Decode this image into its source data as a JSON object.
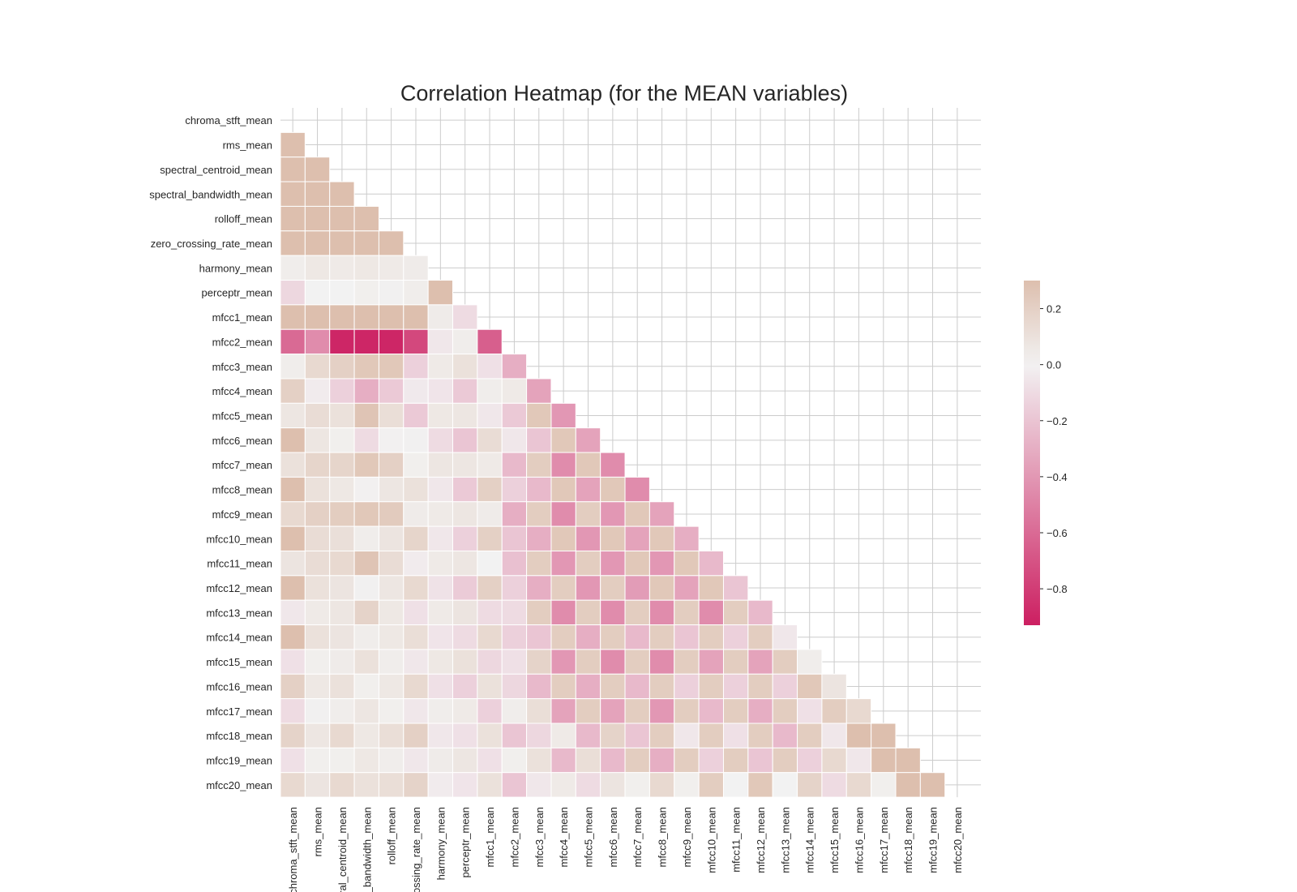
{
  "chart_data": {
    "type": "heatmap",
    "title": "Correlation Heatmap (for the MEAN variables)",
    "xlabel": "",
    "ylabel": "",
    "mask": "upper triangle incl. diagonal",
    "variables": [
      "chroma_stft_mean",
      "rms_mean",
      "spectral_centroid_mean",
      "spectral_bandwidth_mean",
      "rolloff_mean",
      "zero_crossing_rate_mean",
      "harmony_mean",
      "perceptr_mean",
      "mfcc1_mean",
      "mfcc2_mean",
      "mfcc3_mean",
      "mfcc4_mean",
      "mfcc5_mean",
      "mfcc6_mean",
      "mfcc7_mean",
      "mfcc8_mean",
      "mfcc9_mean",
      "mfcc10_mean",
      "mfcc11_mean",
      "mfcc12_mean",
      "mfcc13_mean",
      "mfcc14_mean",
      "mfcc15_mean",
      "mfcc16_mean",
      "mfcc17_mean",
      "mfcc18_mean",
      "mfcc19_mean",
      "mfcc20_mean"
    ],
    "rows": [
      [],
      [
        0.35
      ],
      [
        0.35,
        0.35
      ],
      [
        0.35,
        0.35,
        0.35
      ],
      [
        0.35,
        0.35,
        0.35,
        0.35
      ],
      [
        0.35,
        0.35,
        0.35,
        0.35,
        0.35
      ],
      [
        0.03,
        0.06,
        0.05,
        0.06,
        0.05,
        0.04
      ],
      [
        -0.12,
        0.0,
        0.0,
        0.02,
        0.01,
        0.03,
        0.35
      ],
      [
        0.35,
        0.35,
        0.35,
        0.35,
        0.35,
        0.35,
        0.04,
        -0.1
      ],
      [
        -0.6,
        -0.45,
        -0.9,
        -0.9,
        -0.9,
        -0.75,
        -0.05,
        0.03,
        -0.65
      ],
      [
        0.03,
        0.15,
        0.2,
        0.25,
        0.25,
        -0.15,
        0.05,
        0.1,
        -0.08,
        -0.3
      ],
      [
        0.2,
        -0.03,
        -0.15,
        -0.3,
        -0.18,
        -0.04,
        -0.06,
        -0.18,
        0.03,
        0.05,
        -0.35
      ],
      [
        0.07,
        0.13,
        0.1,
        0.27,
        0.12,
        -0.18,
        0.06,
        0.07,
        -0.05,
        -0.18,
        0.25,
        -0.4
      ],
      [
        0.3,
        0.07,
        0.02,
        -0.1,
        -0.01,
        0.01,
        -0.1,
        -0.2,
        0.13,
        -0.05,
        -0.2,
        0.25,
        -0.35
      ],
      [
        0.1,
        0.17,
        0.17,
        0.25,
        0.2,
        0.02,
        0.07,
        0.07,
        0.05,
        -0.25,
        0.22,
        -0.45,
        0.25,
        -0.45
      ],
      [
        0.3,
        0.1,
        0.06,
        -0.01,
        0.07,
        0.1,
        -0.05,
        -0.18,
        0.2,
        -0.15,
        -0.25,
        0.25,
        -0.35,
        0.25,
        -0.45
      ],
      [
        0.15,
        0.2,
        0.22,
        0.25,
        0.23,
        0.04,
        0.05,
        0.07,
        0.04,
        -0.3,
        0.22,
        -0.45,
        0.22,
        -0.4,
        0.25,
        -0.35
      ],
      [
        0.3,
        0.13,
        0.11,
        0.03,
        0.08,
        0.17,
        -0.05,
        -0.15,
        0.2,
        -0.2,
        -0.3,
        0.25,
        -0.4,
        0.25,
        -0.35,
        0.25,
        -0.3
      ],
      [
        0.08,
        0.13,
        0.15,
        0.27,
        0.13,
        -0.03,
        0.05,
        0.07,
        0.0,
        -0.22,
        0.22,
        -0.4,
        0.22,
        -0.4,
        0.25,
        -0.4,
        0.25,
        -0.25
      ],
      [
        0.3,
        0.1,
        0.08,
        0.01,
        0.07,
        0.15,
        -0.07,
        -0.17,
        0.2,
        -0.15,
        -0.3,
        0.22,
        -0.4,
        0.22,
        -0.38,
        0.25,
        -0.35,
        0.25,
        -0.2
      ],
      [
        -0.05,
        0.05,
        0.07,
        0.18,
        0.06,
        -0.08,
        0.05,
        0.08,
        -0.1,
        -0.1,
        0.22,
        -0.45,
        0.22,
        -0.45,
        0.22,
        -0.45,
        0.22,
        -0.45,
        0.22,
        -0.25
      ],
      [
        0.3,
        0.1,
        0.08,
        0.03,
        0.06,
        0.12,
        -0.06,
        -0.1,
        0.15,
        -0.15,
        -0.2,
        0.22,
        -0.3,
        0.22,
        -0.25,
        0.22,
        -0.2,
        0.22,
        -0.15,
        0.22,
        -0.05
      ],
      [
        -0.08,
        0.02,
        0.04,
        0.1,
        0.03,
        -0.05,
        0.06,
        0.1,
        -0.12,
        -0.08,
        0.18,
        -0.4,
        0.22,
        -0.45,
        0.22,
        -0.45,
        0.22,
        -0.35,
        0.22,
        -0.35,
        0.22,
        0.03
      ],
      [
        0.2,
        0.06,
        0.1,
        0.02,
        0.06,
        0.15,
        -0.08,
        -0.15,
        0.1,
        -0.12,
        -0.25,
        0.22,
        -0.3,
        0.22,
        -0.25,
        0.22,
        -0.15,
        0.22,
        -0.15,
        0.22,
        -0.15,
        0.25,
        0.08
      ],
      [
        -0.1,
        0.01,
        0.03,
        0.07,
        0.02,
        -0.05,
        0.03,
        0.05,
        -0.15,
        0.03,
        0.12,
        -0.35,
        0.22,
        -0.35,
        0.22,
        -0.4,
        0.22,
        -0.25,
        0.22,
        -0.3,
        0.22,
        -0.08,
        0.22,
        0.15
      ],
      [
        0.18,
        0.07,
        0.15,
        0.06,
        0.12,
        0.2,
        -0.05,
        -0.08,
        0.1,
        -0.2,
        -0.12,
        0.05,
        -0.25,
        0.18,
        -0.2,
        0.22,
        -0.05,
        0.22,
        -0.08,
        0.22,
        -0.25,
        0.22,
        -0.05,
        0.3,
        0.3
      ],
      [
        -0.08,
        0.02,
        0.02,
        0.06,
        0.03,
        -0.05,
        0.04,
        0.07,
        -0.08,
        0.02,
        0.1,
        -0.25,
        0.12,
        -0.25,
        0.22,
        -0.3,
        0.22,
        -0.15,
        0.22,
        -0.2,
        0.22,
        -0.15,
        0.15,
        -0.05,
        0.3,
        0.3
      ],
      [
        0.15,
        0.08,
        0.15,
        0.1,
        0.12,
        0.18,
        -0.03,
        -0.06,
        0.1,
        -0.2,
        -0.05,
        0.05,
        -0.1,
        0.08,
        0.02,
        0.15,
        0.02,
        0.22,
        0.0,
        0.25,
        0.0,
        0.18,
        -0.1,
        0.15,
        0.02,
        0.3,
        0.3
      ]
    ],
    "colorbar": {
      "ticks": [
        0.2,
        0.0,
        -0.2,
        -0.4,
        -0.6,
        -0.8
      ],
      "vmin": -0.93,
      "vmax": 0.3
    },
    "colormap": {
      "low": "#cc1f61",
      "mid": "#f2f2f2",
      "high": "#ddbfae"
    },
    "grid": true,
    "colorbar_placement": "right"
  }
}
